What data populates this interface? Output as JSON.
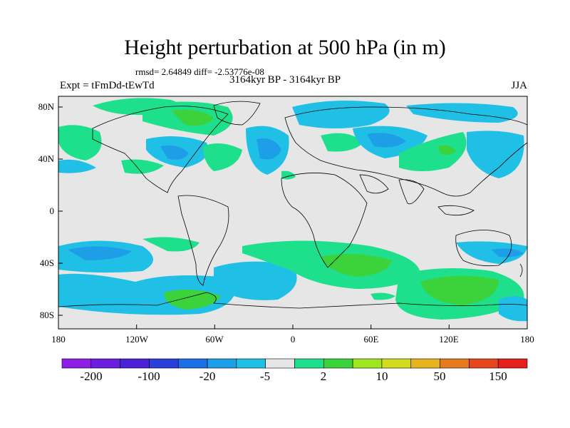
{
  "header": {
    "title": "Height perturbation at 500 hPa (in m)",
    "stats": "rmsd= 2.64849 diff= -2.53776e-08",
    "experiment": "Expt = tFmDd-tEwTd",
    "period": "3164kyr BP - 3164kyr BP",
    "season": "JJA"
  },
  "axes": {
    "lat_labels": [
      "80N",
      "40N",
      "0",
      "40S",
      "80S"
    ],
    "lon_labels": [
      "180",
      "120W",
      "60W",
      "0",
      "60E",
      "120E",
      "180"
    ]
  },
  "colorbar": {
    "colors": [
      "#8c1ee6",
      "#6a1ee0",
      "#4a20d8",
      "#2a40d8",
      "#1e6ee6",
      "#1e9ee6",
      "#20c0e6",
      "#e6e6e6",
      "#1ee08c",
      "#3cd23c",
      "#9ee61e",
      "#d2dc1e",
      "#e6b41e",
      "#e67a1e",
      "#e6461e",
      "#e61e1e"
    ],
    "labels": [
      "-200",
      "-100",
      "-20",
      "-5",
      "2",
      "10",
      "50",
      "150"
    ]
  },
  "legend_icons": {
    "land_outline": "coastline-icon"
  }
}
